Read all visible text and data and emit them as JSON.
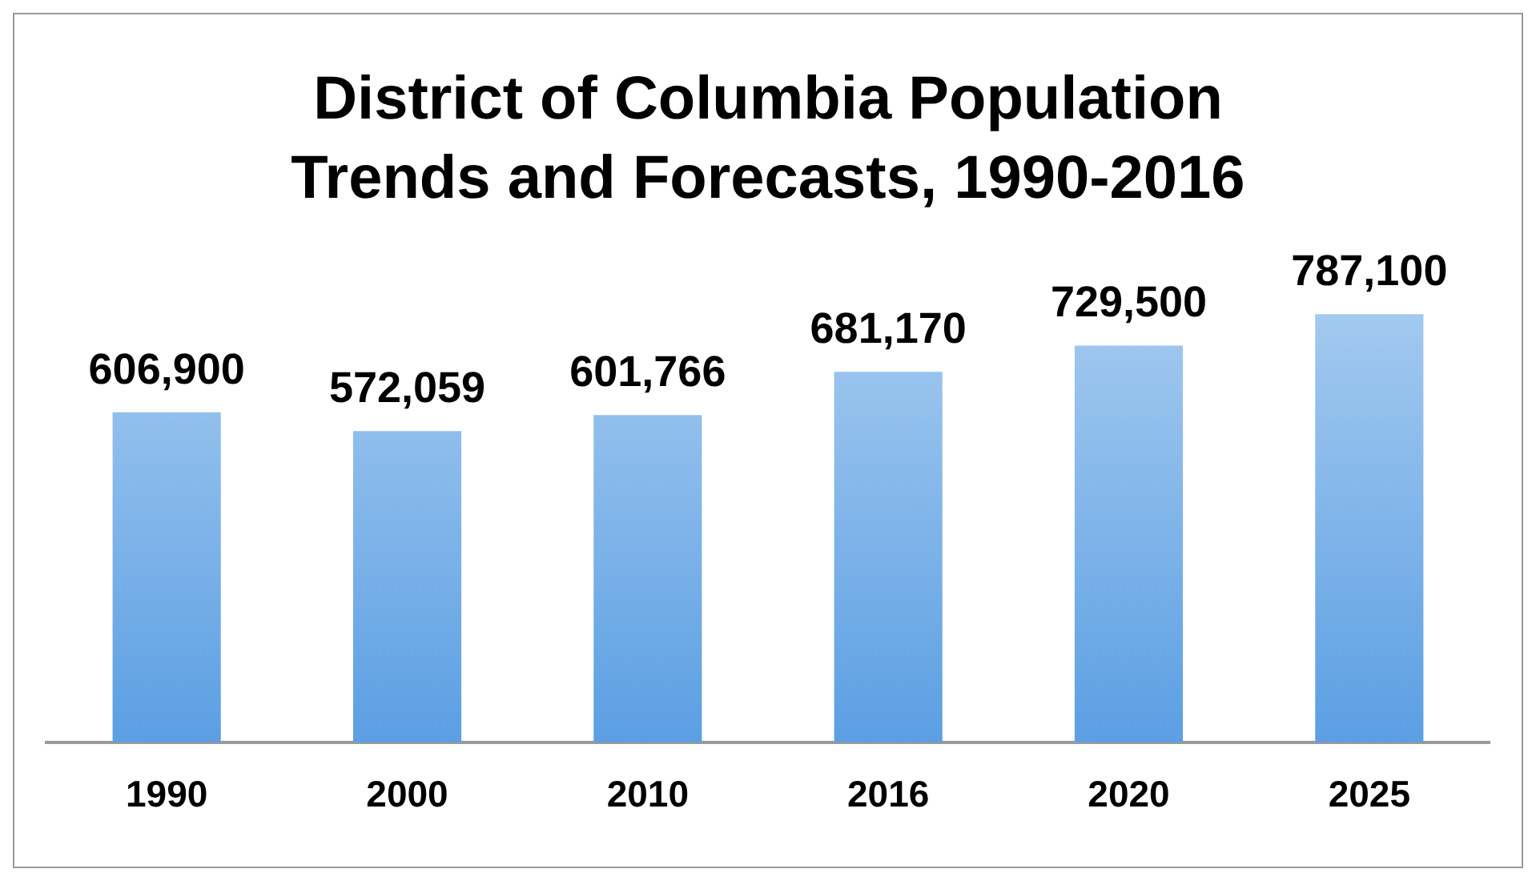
{
  "chart_data": {
    "type": "bar",
    "title": "District of Columbia Population Trends and Forecasts, 1990-2016",
    "categories": [
      "1990",
      "2000",
      "2010",
      "2016",
      "2020",
      "2025"
    ],
    "values": [
      606900,
      572059,
      601766,
      681170,
      729500,
      787100
    ],
    "value_labels": [
      "606,900",
      "572,059",
      "601,766",
      "681,170",
      "729,500",
      "787,100"
    ],
    "color": "#5b9fe3",
    "grid": false,
    "legend": false
  }
}
